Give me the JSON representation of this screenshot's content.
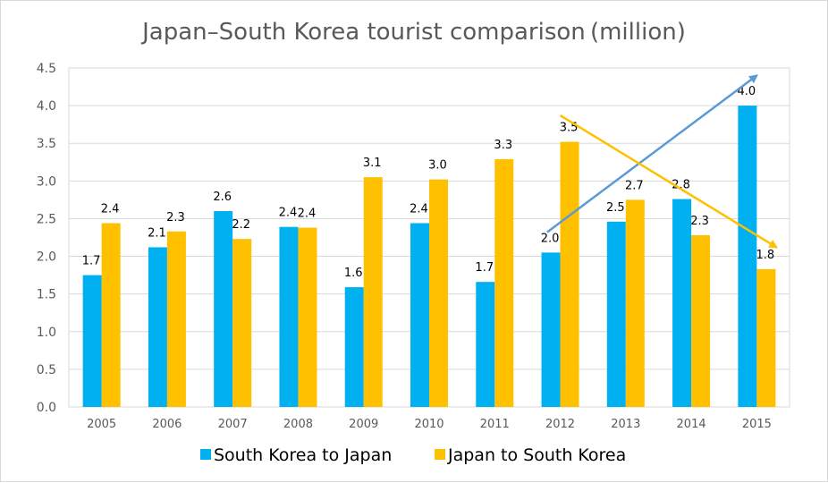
{
  "chart_data": {
    "type": "bar",
    "title": "Japan–South Korea tourist comparison (million)",
    "categories": [
      "2005",
      "2006",
      "2007",
      "2008",
      "2009",
      "2010",
      "2011",
      "2012",
      "2013",
      "2014",
      "2015"
    ],
    "ylim": [
      0,
      4.5
    ],
    "yticks": [
      "0.0",
      "0.5",
      "1.0",
      "1.5",
      "2.0",
      "2.5",
      "3.0",
      "3.5",
      "4.0",
      "4.5"
    ],
    "grid": true,
    "legend": "bottom",
    "series": [
      {
        "name": "South Korea to Japan",
        "color": "#00b0f0",
        "values": [
          1.75,
          2.12,
          2.6,
          2.39,
          1.59,
          2.44,
          1.66,
          2.05,
          2.46,
          2.76,
          4.0
        ],
        "labels": [
          "1.7",
          "2.1",
          "2.6",
          "2.4",
          "1.6",
          "2.4",
          "1.7",
          "2.0",
          "2.5",
          "2.8",
          "4.0"
        ]
      },
      {
        "name": "Japan to South Korea",
        "color": "#ffc000",
        "values": [
          2.44,
          2.33,
          2.23,
          2.38,
          3.05,
          3.02,
          3.29,
          3.52,
          2.75,
          2.28,
          1.83
        ],
        "labels": [
          "2.4",
          "2.3",
          "2.2",
          "2.4",
          "3.1",
          "3.0",
          "3.3",
          "3.5",
          "2.7",
          "2.3",
          "1.8"
        ]
      }
    ],
    "annotations": [
      {
        "type": "arrow",
        "color": "#5b9bd5",
        "from": {
          "x": 2011.8,
          "y": 2.32
        },
        "to": {
          "x": 2015.0,
          "y": 4.4
        }
      },
      {
        "type": "arrow",
        "color": "#ffc000",
        "from": {
          "x": 2012.0,
          "y": 3.87
        },
        "to": {
          "x": 2015.3,
          "y": 2.12
        }
      }
    ]
  }
}
